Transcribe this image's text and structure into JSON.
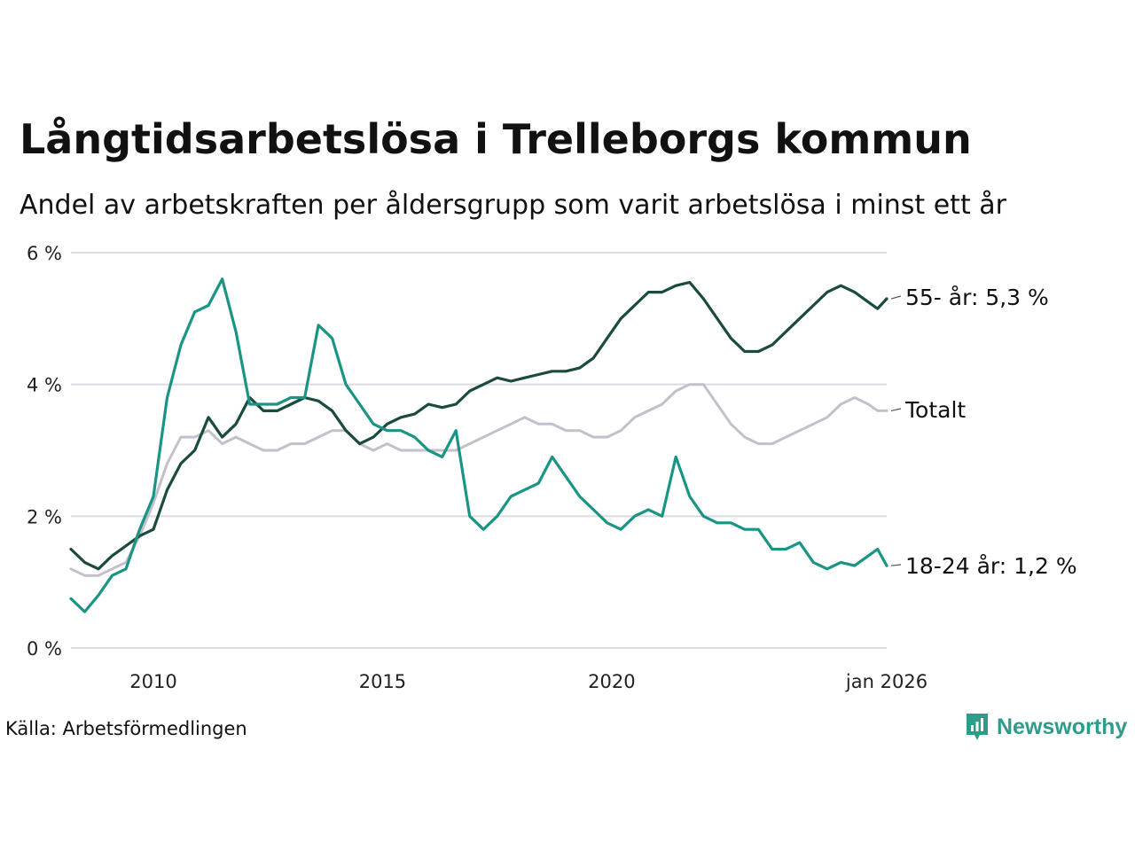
{
  "colors": {
    "age55": "#1b4a3f",
    "total": "#c3bfcb",
    "age18_24": "#1a9484",
    "grid": "#dcdbe0",
    "brand": "#2e9c8a"
  },
  "source_label": "Källa: Arbetsförmedlingen",
  "brand": {
    "name": "Newsworthy",
    "icon": "newsworthy-logo-icon"
  },
  "chart_data": {
    "type": "line",
    "title": "Långtidsarbetslösa i Trelleborgs kommun",
    "subtitle": "Andel av arbetskraften per åldersgrupp som varit arbetslösa i minst ett år",
    "ylim": [
      0,
      6
    ],
    "xlim": [
      2008.2,
      2026.0
    ],
    "y_ticks": [
      {
        "value": 0,
        "label": "0 %"
      },
      {
        "value": 2,
        "label": "2 %"
      },
      {
        "value": 4,
        "label": "4 %"
      },
      {
        "value": 6,
        "label": "6 %"
      }
    ],
    "x_ticks": [
      {
        "value": 2010,
        "label": "2010"
      },
      {
        "value": 2015,
        "label": "2015"
      },
      {
        "value": 2020,
        "label": "2020"
      },
      {
        "value": 2026,
        "label": "jan 2026"
      }
    ],
    "series": [
      {
        "name": "Totalt",
        "key": "total",
        "end_label": "Totalt",
        "x": [
          2008.2,
          2008.5,
          2008.8,
          2009.1,
          2009.4,
          2009.7,
          2010.0,
          2010.3,
          2010.6,
          2010.9,
          2011.2,
          2011.5,
          2011.8,
          2012.1,
          2012.4,
          2012.7,
          2013.0,
          2013.3,
          2013.6,
          2013.9,
          2014.2,
          2014.5,
          2014.8,
          2015.1,
          2015.4,
          2015.7,
          2016.0,
          2016.3,
          2016.6,
          2016.9,
          2017.2,
          2017.5,
          2017.8,
          2018.1,
          2018.4,
          2018.7,
          2019.0,
          2019.3,
          2019.6,
          2019.9,
          2020.2,
          2020.5,
          2020.8,
          2021.1,
          2021.4,
          2021.7,
          2022.0,
          2022.3,
          2022.6,
          2022.9,
          2023.2,
          2023.5,
          2023.8,
          2024.1,
          2024.4,
          2024.7,
          2025.0,
          2025.3,
          2025.6,
          2025.8,
          2026.0
        ],
        "values": [
          1.2,
          1.1,
          1.1,
          1.2,
          1.3,
          1.7,
          2.2,
          2.8,
          3.2,
          3.2,
          3.3,
          3.1,
          3.2,
          3.1,
          3.0,
          3.0,
          3.1,
          3.1,
          3.2,
          3.3,
          3.3,
          3.1,
          3.0,
          3.1,
          3.0,
          3.0,
          3.0,
          3.0,
          3.0,
          3.1,
          3.2,
          3.3,
          3.4,
          3.5,
          3.4,
          3.4,
          3.3,
          3.3,
          3.2,
          3.2,
          3.3,
          3.5,
          3.6,
          3.7,
          3.9,
          4.0,
          4.0,
          3.7,
          3.4,
          3.2,
          3.1,
          3.1,
          3.2,
          3.3,
          3.4,
          3.5,
          3.7,
          3.8,
          3.7,
          3.6,
          3.6
        ]
      },
      {
        "name": "55- år",
        "key": "age55",
        "end_label": "55- år: 5,3 %",
        "x": [
          2008.2,
          2008.5,
          2008.8,
          2009.1,
          2009.4,
          2009.7,
          2010.0,
          2010.3,
          2010.6,
          2010.9,
          2011.2,
          2011.5,
          2011.8,
          2012.1,
          2012.4,
          2012.7,
          2013.0,
          2013.3,
          2013.6,
          2013.9,
          2014.2,
          2014.5,
          2014.8,
          2015.1,
          2015.4,
          2015.7,
          2016.0,
          2016.3,
          2016.6,
          2016.9,
          2017.2,
          2017.5,
          2017.8,
          2018.1,
          2018.4,
          2018.7,
          2019.0,
          2019.3,
          2019.6,
          2019.9,
          2020.2,
          2020.5,
          2020.8,
          2021.1,
          2021.4,
          2021.7,
          2022.0,
          2022.3,
          2022.6,
          2022.9,
          2023.2,
          2023.5,
          2023.8,
          2024.1,
          2024.4,
          2024.7,
          2025.0,
          2025.3,
          2025.6,
          2025.8,
          2026.0
        ],
        "values": [
          1.5,
          1.3,
          1.2,
          1.4,
          1.55,
          1.7,
          1.8,
          2.4,
          2.8,
          3.0,
          3.5,
          3.2,
          3.4,
          3.8,
          3.6,
          3.6,
          3.7,
          3.8,
          3.75,
          3.6,
          3.3,
          3.1,
          3.2,
          3.4,
          3.5,
          3.55,
          3.7,
          3.65,
          3.7,
          3.9,
          4.0,
          4.1,
          4.05,
          4.1,
          4.15,
          4.2,
          4.2,
          4.25,
          4.4,
          4.7,
          5.0,
          5.2,
          5.4,
          5.4,
          5.5,
          5.55,
          5.3,
          5.0,
          4.7,
          4.5,
          4.5,
          4.6,
          4.8,
          5.0,
          5.2,
          5.4,
          5.5,
          5.4,
          5.25,
          5.15,
          5.3
        ]
      },
      {
        "name": "18-24 år",
        "key": "age18_24",
        "end_label": "18-24 år: 1,2 %",
        "x": [
          2008.2,
          2008.5,
          2008.8,
          2009.1,
          2009.4,
          2009.7,
          2010.0,
          2010.3,
          2010.6,
          2010.9,
          2011.2,
          2011.5,
          2011.8,
          2012.1,
          2012.4,
          2012.7,
          2013.0,
          2013.3,
          2013.6,
          2013.9,
          2014.2,
          2014.5,
          2014.8,
          2015.1,
          2015.4,
          2015.7,
          2016.0,
          2016.3,
          2016.6,
          2016.9,
          2017.2,
          2017.5,
          2017.8,
          2018.1,
          2018.4,
          2018.7,
          2019.0,
          2019.3,
          2019.6,
          2019.9,
          2020.2,
          2020.5,
          2020.8,
          2021.1,
          2021.4,
          2021.7,
          2022.0,
          2022.3,
          2022.6,
          2022.9,
          2023.2,
          2023.5,
          2023.8,
          2024.1,
          2024.4,
          2024.7,
          2025.0,
          2025.3,
          2025.6,
          2025.8,
          2026.0
        ],
        "values": [
          0.75,
          0.55,
          0.8,
          1.1,
          1.2,
          1.8,
          2.3,
          3.8,
          4.6,
          5.1,
          5.2,
          5.6,
          4.8,
          3.7,
          3.7,
          3.7,
          3.8,
          3.8,
          4.9,
          4.7,
          4.0,
          3.7,
          3.4,
          3.3,
          3.3,
          3.2,
          3.0,
          2.9,
          3.3,
          2.0,
          1.8,
          2.0,
          2.3,
          2.4,
          2.5,
          2.9,
          2.6,
          2.3,
          2.1,
          1.9,
          1.8,
          2.0,
          2.1,
          2.0,
          2.9,
          2.3,
          2.0,
          1.9,
          1.9,
          1.8,
          1.8,
          1.5,
          1.5,
          1.6,
          1.3,
          1.2,
          1.3,
          1.25,
          1.4,
          1.5,
          1.25
        ]
      }
    ]
  }
}
